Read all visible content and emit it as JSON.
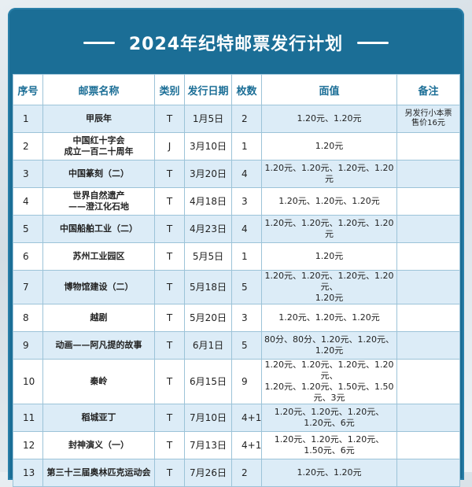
{
  "title": "2024年纪特邮票发行计划",
  "headers": [
    "序号",
    "邮票名称",
    "类别",
    "发行日期",
    "枚数",
    "面值",
    "备注"
  ],
  "rows": [
    {
      "no": "1",
      "name": "甲辰年",
      "type": "T",
      "date": "1月5日",
      "count": "2",
      "value": "1.20元、1.20元",
      "note": "另发行小本票\n售价16元"
    },
    {
      "no": "2",
      "name": "中国红十字会\n成立一百二十周年",
      "type": "J",
      "date": "3月10日",
      "count": "1",
      "value": "1.20元",
      "note": ""
    },
    {
      "no": "3",
      "name": "中国篆刻（二）",
      "type": "T",
      "date": "3月20日",
      "count": "4",
      "value": "1.20元、1.20元、1.20元、1.20元",
      "note": ""
    },
    {
      "no": "4",
      "name": "世界自然遗产\n——澄江化石地",
      "type": "T",
      "date": "4月18日",
      "count": "3",
      "value": "1.20元、1.20元、1.20元",
      "note": ""
    },
    {
      "no": "5",
      "name": "中国船舶工业（二）",
      "type": "T",
      "date": "4月23日",
      "count": "4",
      "value": "1.20元、1.20元、1.20元、1.20元",
      "note": ""
    },
    {
      "no": "6",
      "name": "苏州工业园区",
      "type": "T",
      "date": "5月5日",
      "count": "1",
      "value": "1.20元",
      "note": ""
    },
    {
      "no": "7",
      "name": "博物馆建设（二）",
      "type": "T",
      "date": "5月18日",
      "count": "5",
      "value": "1.20元、1.20元、1.20元、1.20元、\n1.20元",
      "note": ""
    },
    {
      "no": "8",
      "name": "越剧",
      "type": "T",
      "date": "5月20日",
      "count": "3",
      "value": "1.20元、1.20元、1.20元",
      "note": ""
    },
    {
      "no": "9",
      "name": "动画——阿凡提的故事",
      "type": "T",
      "date": "6月1日",
      "count": "5",
      "value": "80分、80分、1.20元、1.20元、\n1.20元",
      "note": ""
    },
    {
      "no": "10",
      "name": "秦岭",
      "type": "T",
      "date": "6月15日",
      "count": "9",
      "value": "1.20元、1.20元、1.20元、1.20元、\n1.20元、1.20元、1.50元、1.50元、3元",
      "note": ""
    },
    {
      "no": "11",
      "name": "稻城亚丁",
      "type": "T",
      "date": "7月10日",
      "count": "4+1",
      "value": "1.20元、1.20元、1.20元、\n1.20元、6元",
      "note": ""
    },
    {
      "no": "12",
      "name": "封神演义（一）",
      "type": "T",
      "date": "7月13日",
      "count": "4+1",
      "value": "1.20元、1.20元、1.20元、\n1.50元、6元",
      "note": ""
    },
    {
      "no": "13",
      "name": "第三十三届奥林匹克运动会",
      "type": "T",
      "date": "7月26日",
      "count": "2",
      "value": "1.20元、1.20元",
      "note": ""
    }
  ]
}
